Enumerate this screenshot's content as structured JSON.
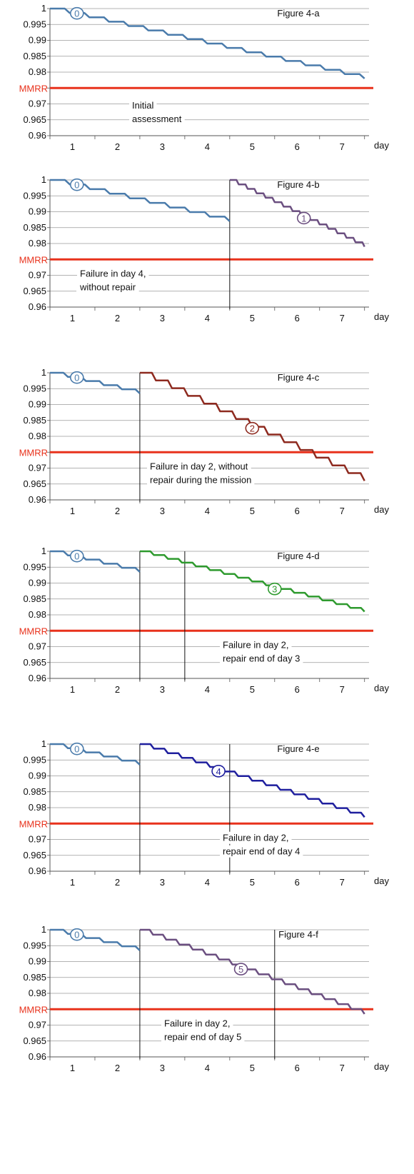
{
  "axis": {
    "y_ticks": [
      "1",
      "0.995",
      "0.99",
      "0.985",
      "0.98",
      "",
      "0.97",
      "0.965",
      "0.96"
    ],
    "y_values": [
      1,
      0.995,
      0.99,
      0.985,
      0.98,
      0.975,
      0.97,
      0.965,
      0.96
    ],
    "x_ticks": [
      "1",
      "2",
      "3",
      "4",
      "5",
      "6",
      "7"
    ],
    "x_unit": "day",
    "mmrr_label": "MMRR",
    "mmrr_value": 0.975,
    "ylim": [
      0.96,
      1.0
    ],
    "xlim": [
      0.5,
      7.6
    ]
  },
  "chart_data": [
    {
      "type": "line",
      "title": "Figure 4-a",
      "annotation": [
        "Initial",
        "assessment"
      ],
      "series": [
        {
          "label": "0",
          "color": "#4a7bab",
          "step": 0.0014,
          "x": [
            0.5,
            7.5
          ],
          "y": [
            1.0,
            0.978
          ]
        }
      ],
      "vlines": []
    },
    {
      "type": "line",
      "title": "Figure 4-b",
      "annotation": [
        "Failure in day 4,",
        "without repair"
      ],
      "series": [
        {
          "label": "0",
          "color": "#4a7bab",
          "step": 0.0014,
          "x": [
            0.5,
            4.5
          ],
          "y": [
            1.0,
            0.987
          ]
        },
        {
          "label": "1",
          "color": "#6b4f80",
          "step": 0.0014,
          "x": [
            4.5,
            7.5
          ],
          "y": [
            1.0,
            0.979
          ]
        }
      ],
      "vlines": [
        4.5
      ]
    },
    {
      "type": "line",
      "title": "Figure 4-c",
      "annotation": [
        "Failure in day 2, without",
        "repair during the mission"
      ],
      "series": [
        {
          "label": "0",
          "color": "#4a7bab",
          "step": 0.0014,
          "x": [
            0.5,
            2.5
          ],
          "y": [
            1.0,
            0.9935
          ]
        },
        {
          "label": "2",
          "color": "#8e2a1f",
          "step": 0.0025,
          "x": [
            2.5,
            7.5
          ],
          "y": [
            1.0,
            0.966
          ]
        }
      ],
      "vlines": [
        2.5
      ]
    },
    {
      "type": "line",
      "title": "Figure 4-d",
      "annotation": [
        "Failure in day 2,",
        "repair end of day 3"
      ],
      "series": [
        {
          "label": "0",
          "color": "#4a7bab",
          "step": 0.0014,
          "x": [
            0.5,
            2.5
          ],
          "y": [
            1.0,
            0.9935
          ]
        },
        {
          "label": "3",
          "color": "#2e9a2e",
          "step": 0.0012,
          "x": [
            2.5,
            7.5
          ],
          "y": [
            1.0,
            0.981
          ]
        }
      ],
      "vlines": [
        2.5,
        3.5
      ]
    },
    {
      "type": "line",
      "title": "Figure 4-e",
      "annotation": [
        "Failure in day 2,",
        "repair end of day 4"
      ],
      "series": [
        {
          "label": "0",
          "color": "#4a7bab",
          "step": 0.0014,
          "x": [
            0.5,
            2.5
          ],
          "y": [
            1.0,
            0.9935
          ]
        },
        {
          "label": "4",
          "color": "#1f1f9e",
          "step": 0.0014,
          "x": [
            2.5,
            7.5
          ],
          "y": [
            1.0,
            0.977
          ]
        }
      ],
      "vlines": [
        2.5,
        4.5
      ]
    },
    {
      "type": "line",
      "title": "Figure 4-f",
      "annotation": [
        "Failure in day 2,",
        "repair end of day 5"
      ],
      "series": [
        {
          "label": "0",
          "color": "#4a7bab",
          "step": 0.0014,
          "x": [
            0.5,
            2.5
          ],
          "y": [
            1.0,
            0.9935
          ]
        },
        {
          "label": "5",
          "color": "#6b4f80",
          "step": 0.0016,
          "x": [
            2.5,
            7.5
          ],
          "y": [
            1.0,
            0.9735
          ]
        }
      ],
      "vlines": [
        2.5,
        5.5
      ]
    }
  ]
}
